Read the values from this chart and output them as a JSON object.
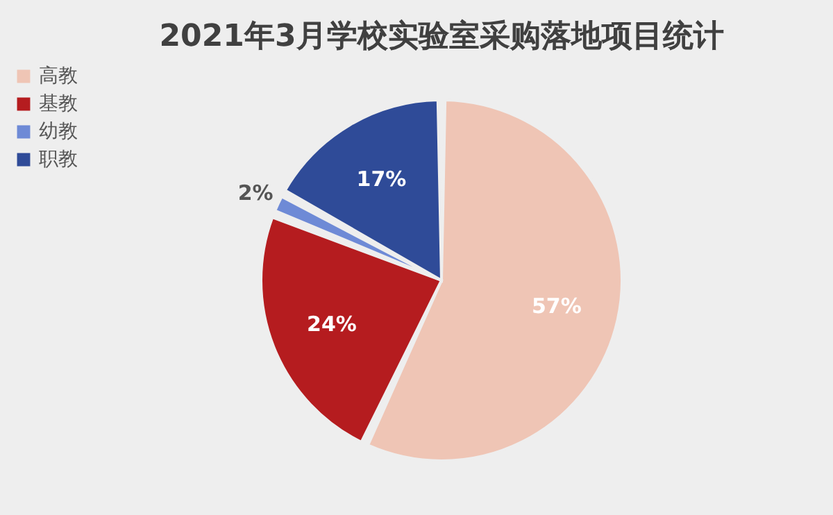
{
  "chart_data": {
    "type": "pie",
    "title": "2021年3月学校实验室采购落地项目统计",
    "categories": [
      "高教",
      "基教",
      "幼教",
      "职教"
    ],
    "values": [
      57,
      24,
      2,
      17
    ],
    "value_labels": [
      "57%",
      "24%",
      "2%",
      "17%"
    ],
    "colors": [
      "#efc5b5",
      "#b51c1f",
      "#6e8ad6",
      "#2f4b98"
    ],
    "legend": "left"
  }
}
